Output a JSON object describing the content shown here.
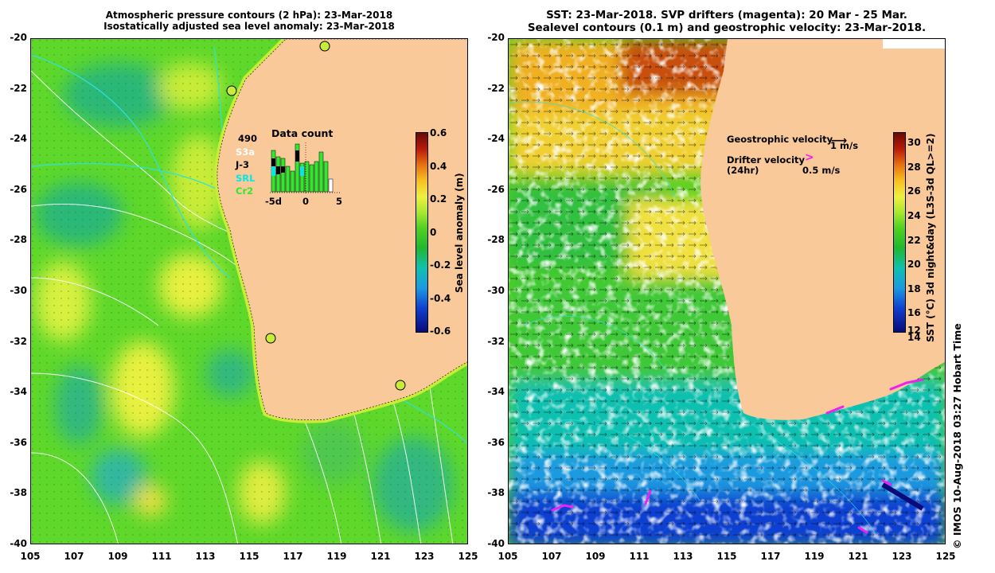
{
  "left_panel": {
    "title_line1": "Atmospheric pressure contours (2 hPa): 23-Mar-2018",
    "title_line2": "Isostatically adjusted sea level anomaly: 23-Mar-2018",
    "y_ticks": [
      "-20",
      "-22",
      "-24",
      "-26",
      "-28",
      "-30",
      "-32",
      "-34",
      "-36",
      "-38",
      "-40"
    ],
    "x_ticks": [
      "105",
      "107",
      "109",
      "111",
      "113",
      "115",
      "117",
      "119",
      "121",
      "123",
      "125"
    ],
    "colorbar": {
      "label": "Sea level anomaly (m)",
      "ticks": [
        "0.6",
        "0.4",
        "0.2",
        "0",
        "-0.2",
        "-0.4",
        "-0.6"
      ],
      "colors": [
        "#0a0a7a",
        "#1040d0",
        "#1a9ae0",
        "#10c0b0",
        "#20b830",
        "#50d020",
        "#a8e830",
        "#f0f040",
        "#f8c020",
        "#e87010",
        "#b81a08",
        "#6a0a04"
      ]
    },
    "data_count": {
      "title": "Data count",
      "legend": [
        {
          "label": "490",
          "color": "#000000"
        },
        {
          "label": "S3a",
          "color": "#ffffff"
        },
        {
          "label": "J-3",
          "color": "#000000"
        },
        {
          "label": "SRL",
          "color": "#00e8e8"
        },
        {
          "label": "Cr2",
          "color": "#30e830"
        }
      ],
      "x_ticks": [
        "-5d",
        "0",
        "5"
      ]
    }
  },
  "right_panel": {
    "title_line1": "SST: 23-Mar-2018. SVP drifters (magenta): 20 Mar - 25 Mar.",
    "title_line2": "Sealevel contours (0.1 m) and geostrophic velocity: 23-Mar-2018.",
    "y_ticks": [
      "-20",
      "-22",
      "-24",
      "-26",
      "-28",
      "-30",
      "-32",
      "-34",
      "-36",
      "-38",
      "-40"
    ],
    "x_ticks": [
      "105",
      "107",
      "109",
      "111",
      "113",
      "115",
      "117",
      "119",
      "121",
      "123",
      "125"
    ],
    "geostrophic_label": "Geostrophic velocity",
    "geostrophic_scale": "1 m/s",
    "drifter_label": "Drifter velocity",
    "drifter_sub": "(24hr)",
    "drifter_scale": "0.5 m/s",
    "colorbar": {
      "label": "SST (°C) 3d night&day (L3S-3d QL>=2)",
      "ticks": [
        "30",
        "28",
        "26",
        "24",
        "22",
        "20",
        "18",
        "16",
        "14",
        "12"
      ],
      "colors": [
        "#0a0a7a",
        "#1040d0",
        "#1a9ae0",
        "#10c0b0",
        "#20b830",
        "#50d020",
        "#a8e830",
        "#f0f040",
        "#f8c020",
        "#e87010",
        "#b81a08",
        "#6a0a04"
      ]
    }
  },
  "credit": "© IMOS 10-Aug-2018 03:27 Hobart Time",
  "colors": {
    "land": "#f9c99a",
    "ocean_green": "#5ed82a",
    "ocean_yellow": "#c8ec38",
    "contour_cyan": "#30e0e0",
    "drifter_magenta": "#f020f0"
  }
}
